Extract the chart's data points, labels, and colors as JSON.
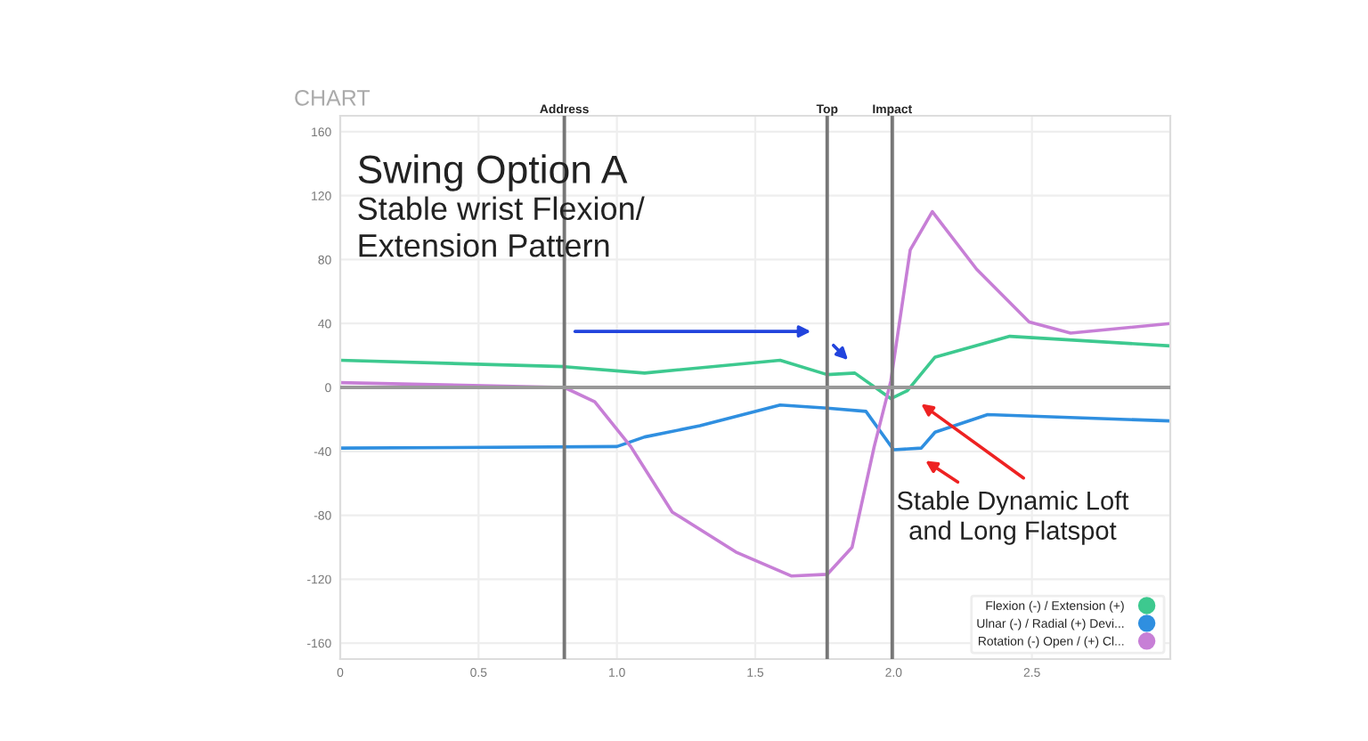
{
  "chart_data": {
    "type": "line",
    "title": "CHART",
    "xlim": [
      0,
      3.0
    ],
    "xticks": [
      0,
      0.5,
      {
        "value": 1.0,
        "label": "1.0"
      },
      1.5,
      {
        "value": 2.0,
        "label": "2.0"
      },
      2.5
    ],
    "ylim": [
      -170,
      170
    ],
    "yticks": [
      -160,
      -120,
      -80,
      -40,
      0,
      40,
      80,
      120,
      160
    ],
    "grid": true,
    "legend": "bottom right",
    "marker": "none",
    "line_style": "solid",
    "series": [
      {
        "name": "Flexion (-) / Extension (+)",
        "color": "#3dc98f",
        "x": [
          0,
          0.81,
          1.1,
          1.59,
          1.76,
          1.86,
          1.99,
          2.05,
          2.15,
          2.42,
          3.0
        ],
        "values": [
          17,
          13,
          9,
          17,
          8,
          9,
          -7,
          -2,
          19,
          32,
          26
        ]
      },
      {
        "name": "Ulnar (-) / Radial (+) Devi...",
        "color": "#2f8fe0",
        "x": [
          0,
          1.0,
          1.1,
          1.3,
          1.59,
          1.76,
          1.9,
          2.0,
          2.1,
          2.15,
          2.34,
          3.0
        ],
        "values": [
          -38,
          -37,
          -31,
          -24,
          -11,
          -13,
          -15,
          -39,
          -38,
          -28,
          -17,
          -21
        ]
      },
      {
        "name": "Rotation (-) Open / (+) Cl...",
        "color": "#c77fd6",
        "x": [
          0,
          0.81,
          0.92,
          1.05,
          1.2,
          1.43,
          1.63,
          1.76,
          1.85,
          1.93,
          1.99,
          2.06,
          2.14,
          2.3,
          2.49,
          2.64,
          3.0
        ],
        "values": [
          3,
          0,
          -9,
          -37,
          -78,
          -103,
          -118,
          -117,
          -100,
          -37,
          4,
          86,
          110,
          74,
          41,
          34,
          40
        ]
      }
    ],
    "ref_lines": [
      {
        "axis": "x",
        "value": 0.81,
        "label": "Address"
      },
      {
        "axis": "x",
        "value": 1.76,
        "label": "Top"
      },
      {
        "axis": "x",
        "value": 1.995,
        "label": "Impact"
      },
      {
        "axis": "y",
        "value": 0,
        "label": null,
        "color": "#999999"
      }
    ],
    "annotations": [
      "Swing Option A",
      "Stable wrist Flexion/\nExtension Pattern",
      "Stable Dynamic Loft\nand Long Flatspot"
    ]
  }
}
